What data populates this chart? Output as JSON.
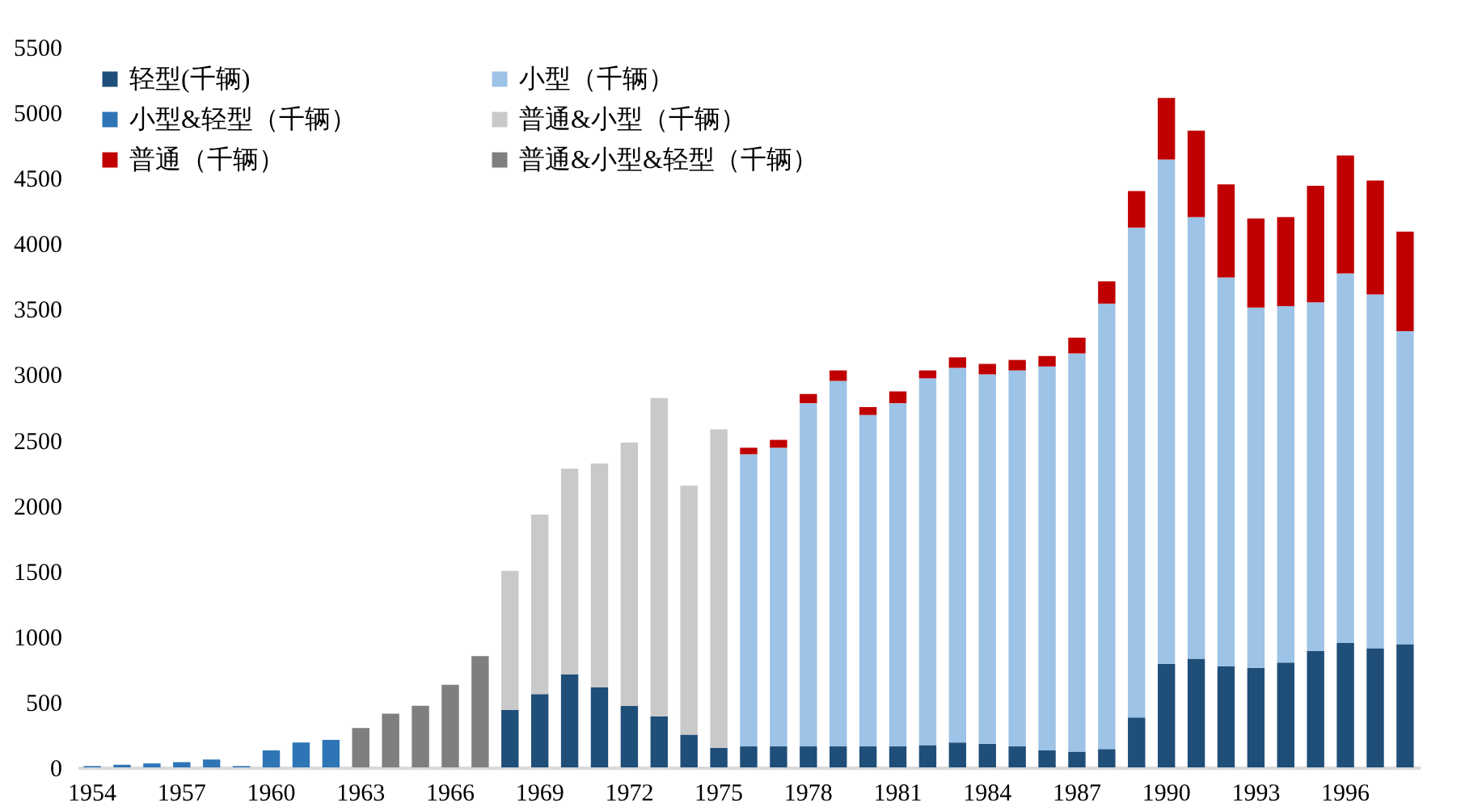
{
  "chart_data": {
    "type": "bar",
    "stacked": true,
    "categories": [
      "1954",
      null,
      null,
      "1957",
      null,
      null,
      "1960",
      null,
      null,
      "1963",
      null,
      null,
      "1966",
      null,
      null,
      "1969",
      null,
      null,
      "1972",
      null,
      null,
      "1975",
      null,
      null,
      "1978",
      null,
      null,
      "1981",
      null,
      null,
      "1984",
      null,
      null,
      "1987",
      null,
      null,
      "1990",
      null,
      null,
      "1993",
      null,
      null,
      "1996",
      null,
      null
    ],
    "series": [
      {
        "name": "轻型(千辆)",
        "color": "#1f4e79",
        "values": [
          null,
          null,
          null,
          null,
          null,
          null,
          null,
          null,
          null,
          null,
          null,
          null,
          null,
          null,
          440,
          560,
          710,
          610,
          470,
          390,
          250,
          150,
          160,
          160,
          160,
          160,
          160,
          160,
          170,
          190,
          180,
          160,
          130,
          120,
          140,
          380,
          790,
          830,
          770,
          760,
          800,
          890,
          950,
          910,
          940
        ]
      },
      {
        "name": "小型（千辆）",
        "color": "#9dc3e6",
        "values": [
          null,
          null,
          null,
          null,
          null,
          null,
          null,
          null,
          null,
          null,
          null,
          null,
          null,
          null,
          null,
          null,
          null,
          null,
          null,
          null,
          null,
          null,
          2230,
          2280,
          2620,
          2790,
          2530,
          2620,
          2800,
          2860,
          2820,
          2870,
          2930,
          3040,
          3400,
          3740,
          3850,
          3370,
          2970,
          2750,
          2720,
          2660,
          2820,
          2700,
          2390
        ]
      },
      {
        "name": "小型&轻型（千辆）",
        "color": "#2e75b6",
        "values": [
          10,
          20,
          30,
          40,
          60,
          10,
          130,
          190,
          210,
          null,
          null,
          null,
          null,
          null,
          null,
          null,
          null,
          null,
          null,
          null,
          null,
          null,
          null,
          null,
          null,
          null,
          null,
          null,
          null,
          null,
          null,
          null,
          null,
          null,
          null,
          null,
          null,
          null,
          null,
          null,
          null,
          null,
          null,
          null,
          null
        ]
      },
      {
        "name": "普通&小型（千辆）",
        "color": "#c9c9c9",
        "values": [
          null,
          null,
          null,
          null,
          null,
          null,
          null,
          null,
          null,
          null,
          null,
          null,
          null,
          null,
          1060,
          1370,
          1570,
          1710,
          2010,
          2430,
          1900,
          2430,
          null,
          null,
          null,
          null,
          null,
          null,
          null,
          null,
          null,
          null,
          null,
          null,
          null,
          null,
          null,
          null,
          null,
          null,
          null,
          null,
          null,
          null,
          null
        ]
      },
      {
        "name": "普通（千辆）",
        "color": "#c00000",
        "values": [
          null,
          null,
          null,
          null,
          null,
          null,
          null,
          null,
          null,
          null,
          null,
          null,
          null,
          null,
          null,
          null,
          null,
          null,
          null,
          null,
          null,
          null,
          50,
          60,
          70,
          80,
          60,
          90,
          60,
          80,
          80,
          80,
          80,
          120,
          170,
          280,
          470,
          660,
          710,
          680,
          680,
          890,
          900,
          870,
          760
        ]
      },
      {
        "name": "普通&小型&轻型（千辆）",
        "color": "#7f7f7f",
        "values": [
          null,
          null,
          null,
          null,
          null,
          null,
          null,
          null,
          null,
          300,
          410,
          470,
          630,
          850,
          null,
          null,
          null,
          null,
          null,
          null,
          null,
          null,
          null,
          null,
          null,
          null,
          null,
          null,
          null,
          null,
          null,
          null,
          null,
          null,
          null,
          null,
          null,
          null,
          null,
          null,
          null,
          null,
          null,
          null,
          null
        ]
      }
    ],
    "ylim": [
      0,
      5500
    ],
    "yticks": [
      0,
      500,
      1000,
      1500,
      2000,
      2500,
      3000,
      3500,
      4000,
      4500,
      5000,
      5500
    ],
    "legend": "top left"
  }
}
